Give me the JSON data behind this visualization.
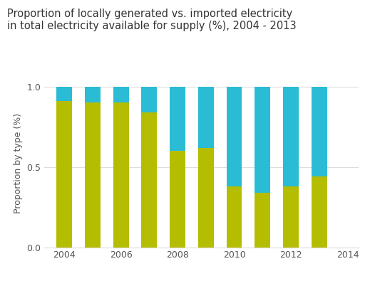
{
  "years": [
    2004,
    2005,
    2006,
    2007,
    2008,
    2009,
    2010,
    2011,
    2012,
    2013
  ],
  "local": [
    0.91,
    0.9,
    0.9,
    0.84,
    0.6,
    0.62,
    0.38,
    0.34,
    0.38,
    0.44
  ],
  "imported": [
    0.09,
    0.1,
    0.1,
    0.16,
    0.4,
    0.38,
    0.62,
    0.66,
    0.62,
    0.56
  ],
  "local_color": "#b5bd00",
  "imported_color": "#29bcd4",
  "title_line1": "Proportion of locally generated vs. imported electricity",
  "title_line2": "in total electricity available for supply (%), 2004 - 2013",
  "ylabel": "Proportion by type (%)",
  "ylim": [
    0.0,
    1.05
  ],
  "yticks": [
    0.0,
    0.5,
    1.0
  ],
  "ytick_labels": [
    "0.0",
    "0.5",
    "1.0"
  ],
  "background_color": "#ffffff",
  "plot_bg_color": "#ffffff",
  "bar_width": 0.55,
  "title_fontsize": 10.5,
  "axis_label_fontsize": 9,
  "tick_fontsize": 9,
  "grid_color": "#dddddd",
  "text_color": "#555555",
  "xticks": [
    2004,
    2006,
    2008,
    2010,
    2012,
    2014
  ],
  "xlim": [
    2003.3,
    2014.4
  ]
}
